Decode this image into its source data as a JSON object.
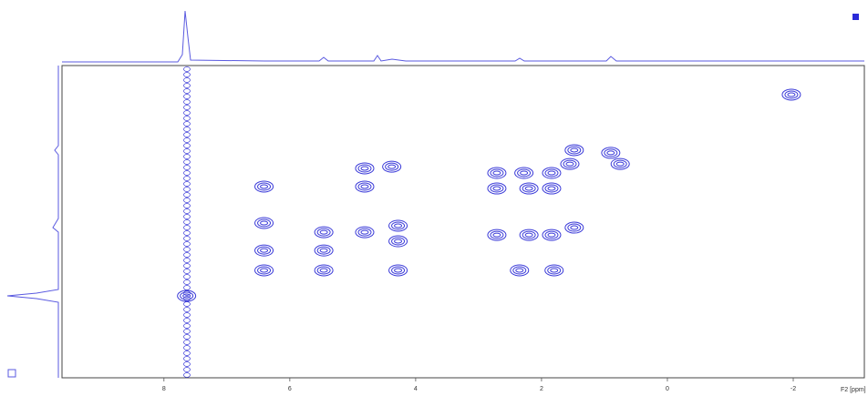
{
  "chart_data": {
    "type": "scatter",
    "x_label": "F2 [ppm]",
    "x": [
      6.41,
      6.41,
      6.41,
      6.41,
      5.46,
      5.46,
      5.46,
      4.81,
      4.81,
      4.81,
      4.38,
      4.28,
      4.28,
      4.28,
      2.71,
      2.71,
      2.71,
      2.35,
      2.28,
      2.2,
      2.2,
      1.84,
      1.84,
      1.84,
      1.8,
      1.55,
      1.48,
      1.48,
      0.9,
      0.75,
      -1.97,
      7.64
    ],
    "values": [
      2.42,
      4.16,
      5.47,
      6.42,
      4.6,
      5.47,
      6.42,
      1.55,
      2.42,
      4.6,
      1.47,
      4.29,
      5.03,
      6.42,
      1.77,
      2.51,
      4.73,
      6.42,
      1.77,
      2.51,
      4.73,
      1.77,
      2.51,
      4.73,
      6.42,
      1.34,
      0.68,
      4.38,
      0.81,
      1.34,
      -1.97,
      7.64
    ],
    "color": "#3a3ad8",
    "xlim": [
      9.62,
      -3.13
    ],
    "ylim": [
      11.55,
      -3.36
    ],
    "xticks": [
      8,
      6,
      4,
      2,
      0,
      -2
    ]
  }
}
